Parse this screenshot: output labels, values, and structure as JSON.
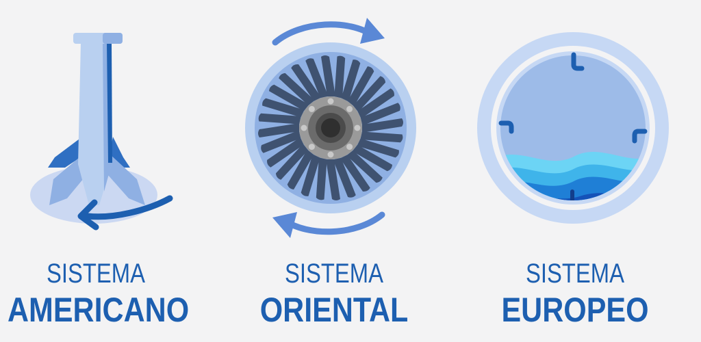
{
  "panels": [
    {
      "id": "americano",
      "sub": "SISTEMA",
      "title": "AMERICANO",
      "icon": "agitator-washer-icon"
    },
    {
      "id": "oriental",
      "sub": "SISTEMA",
      "title": "ORIENTAL",
      "icon": "impeller-washer-icon"
    },
    {
      "id": "europeo",
      "sub": "SISTEMA",
      "title": "EUROPEO",
      "icon": "drum-washer-icon"
    }
  ],
  "colors": {
    "background": "#f3f3f4",
    "text": "#1d5fb0",
    "light_blue": "#b9d0f0",
    "mid_blue": "#8fb0e3",
    "dark_blue": "#1d5fb0",
    "arrow_blue": "#5a88d6",
    "blade": "#3f5270",
    "hub_gray": "#9a9a9a",
    "water": "#4fc3ef"
  }
}
